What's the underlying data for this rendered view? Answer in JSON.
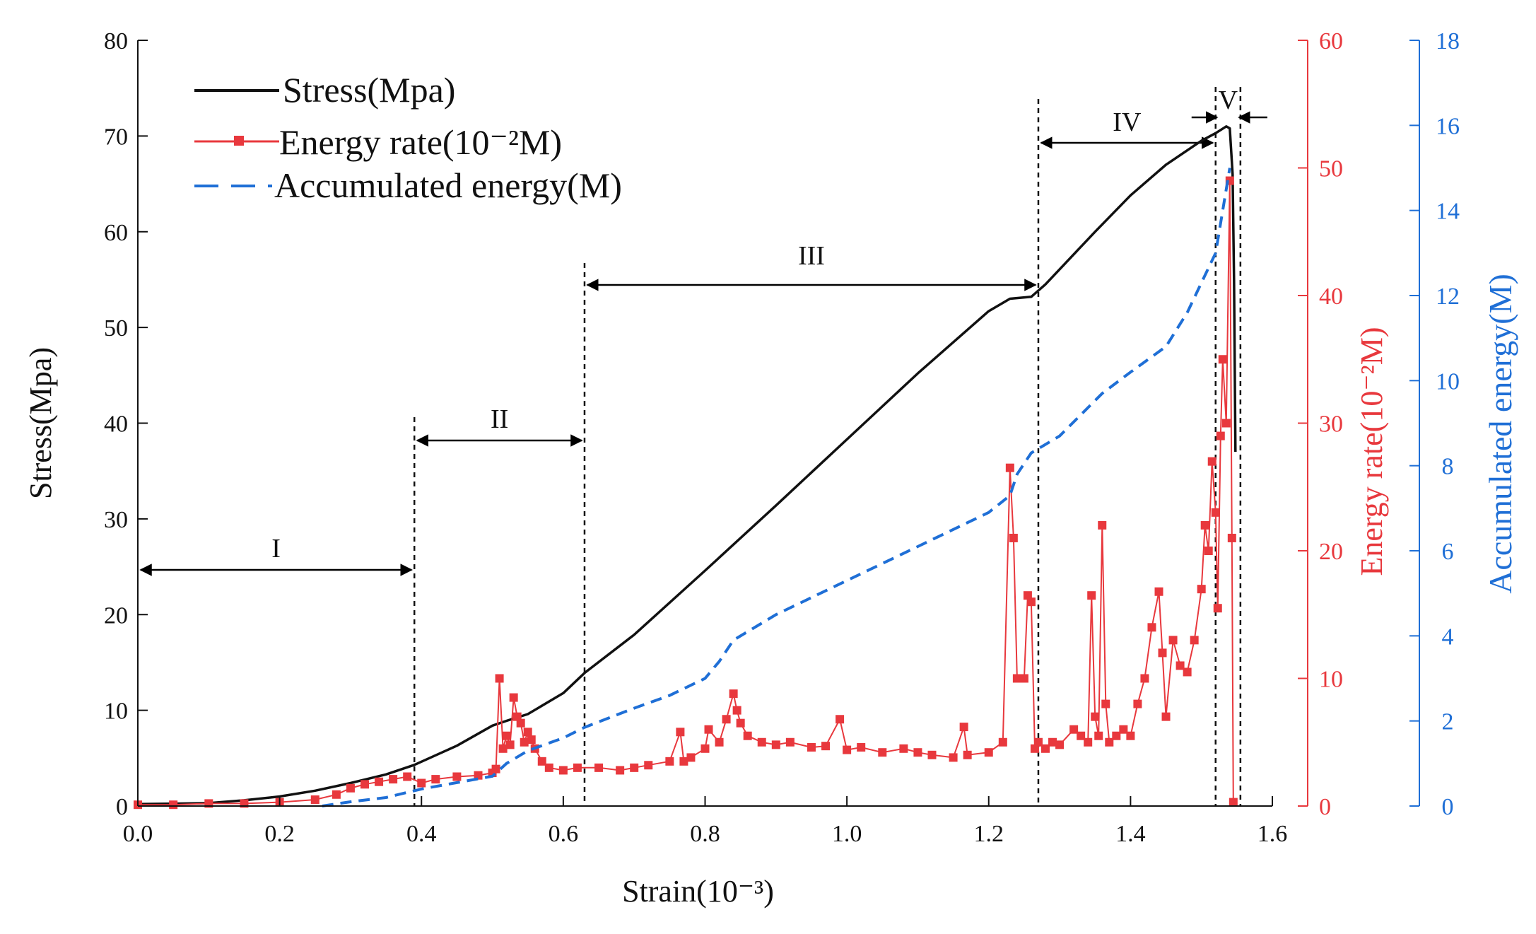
{
  "chart_data": {
    "type": "line",
    "xlabel": "Strain(10⁻³)",
    "xlim": [
      0.0,
      1.6
    ],
    "x_ticks": [
      "0.0",
      "0.2",
      "0.4",
      "0.6",
      "0.8",
      "1.0",
      "1.2",
      "1.4",
      "1.6"
    ],
    "axes": {
      "stress": {
        "label": "Stress(Mpa)",
        "lim": [
          0,
          80
        ],
        "ticks": [
          "0",
          "10",
          "20",
          "30",
          "40",
          "50",
          "60",
          "70",
          "80"
        ],
        "color": "#111111"
      },
      "energy_rate": {
        "label": "Energy rate(10⁻²M)",
        "lim": [
          0,
          60
        ],
        "ticks": [
          "0",
          "10",
          "20",
          "30",
          "40",
          "50",
          "60"
        ],
        "color": "#e8383d"
      },
      "accumulated": {
        "label": "Accumulated energy(M)",
        "lim": [
          0,
          18
        ],
        "ticks": [
          "0",
          "2",
          "4",
          "6",
          "8",
          "10",
          "12",
          "14",
          "16",
          "18"
        ],
        "color": "#1f6fd6"
      }
    },
    "legend": {
      "position": "top-left",
      "entries": [
        "Stress(Mpa)",
        "Energy rate(10⁻²M)",
        "Accumulated energy(M)"
      ]
    },
    "stages": [
      {
        "label": "I",
        "from": 0.0,
        "to": 0.39
      },
      {
        "label": "II",
        "from": 0.39,
        "to": 0.63
      },
      {
        "label": "III",
        "from": 0.63,
        "to": 1.27
      },
      {
        "label": "IV",
        "from": 1.27,
        "to": 1.52
      },
      {
        "label": "V",
        "from": 1.52,
        "to": 1.555
      }
    ],
    "series": [
      {
        "name": "Stress(Mpa)",
        "axis": "stress",
        "color": "#111111",
        "style": "solid",
        "points": [
          [
            0.0,
            0.2
          ],
          [
            0.1,
            0.3
          ],
          [
            0.15,
            0.6
          ],
          [
            0.2,
            1.0
          ],
          [
            0.25,
            1.6
          ],
          [
            0.3,
            2.4
          ],
          [
            0.35,
            3.3
          ],
          [
            0.39,
            4.3
          ],
          [
            0.45,
            6.3
          ],
          [
            0.5,
            8.4
          ],
          [
            0.52,
            8.9
          ],
          [
            0.55,
            9.6
          ],
          [
            0.6,
            11.8
          ],
          [
            0.63,
            13.9
          ],
          [
            0.7,
            17.9
          ],
          [
            0.8,
            24.6
          ],
          [
            0.9,
            31.4
          ],
          [
            1.0,
            38.3
          ],
          [
            1.1,
            45.2
          ],
          [
            1.2,
            51.7
          ],
          [
            1.23,
            53.0
          ],
          [
            1.26,
            53.2
          ],
          [
            1.28,
            54.5
          ],
          [
            1.35,
            60.0
          ],
          [
            1.4,
            63.8
          ],
          [
            1.45,
            67.0
          ],
          [
            1.5,
            69.5
          ],
          [
            1.52,
            70.3
          ],
          [
            1.535,
            71.0
          ],
          [
            1.54,
            70.8
          ],
          [
            1.544,
            66.0
          ],
          [
            1.546,
            55.0
          ],
          [
            1.548,
            37.0
          ]
        ]
      },
      {
        "name": "Energy rate(10⁻²M)",
        "axis": "energy_rate",
        "color": "#e8383d",
        "style": "line-square-markers",
        "points": [
          [
            0.0,
            0.1
          ],
          [
            0.05,
            0.1
          ],
          [
            0.1,
            0.2
          ],
          [
            0.15,
            0.2
          ],
          [
            0.2,
            0.3
          ],
          [
            0.25,
            0.5
          ],
          [
            0.28,
            0.9
          ],
          [
            0.3,
            1.4
          ],
          [
            0.32,
            1.7
          ],
          [
            0.34,
            1.9
          ],
          [
            0.36,
            2.1
          ],
          [
            0.38,
            2.3
          ],
          [
            0.4,
            1.8
          ],
          [
            0.42,
            2.1
          ],
          [
            0.45,
            2.3
          ],
          [
            0.48,
            2.4
          ],
          [
            0.5,
            2.6
          ],
          [
            0.505,
            2.9
          ],
          [
            0.51,
            10.0
          ],
          [
            0.515,
            4.5
          ],
          [
            0.52,
            5.5
          ],
          [
            0.525,
            4.8
          ],
          [
            0.53,
            8.5
          ],
          [
            0.535,
            7.0
          ],
          [
            0.54,
            6.5
          ],
          [
            0.545,
            5.0
          ],
          [
            0.55,
            5.8
          ],
          [
            0.555,
            5.2
          ],
          [
            0.56,
            4.5
          ],
          [
            0.57,
            3.5
          ],
          [
            0.58,
            3.0
          ],
          [
            0.6,
            2.8
          ],
          [
            0.62,
            3.0
          ],
          [
            0.65,
            3.0
          ],
          [
            0.68,
            2.8
          ],
          [
            0.7,
            3.0
          ],
          [
            0.72,
            3.2
          ],
          [
            0.75,
            3.5
          ],
          [
            0.765,
            5.8
          ],
          [
            0.77,
            3.5
          ],
          [
            0.78,
            3.8
          ],
          [
            0.8,
            4.5
          ],
          [
            0.805,
            6.0
          ],
          [
            0.82,
            5.0
          ],
          [
            0.83,
            6.8
          ],
          [
            0.84,
            8.8
          ],
          [
            0.845,
            7.5
          ],
          [
            0.85,
            6.5
          ],
          [
            0.86,
            5.5
          ],
          [
            0.88,
            5.0
          ],
          [
            0.9,
            4.8
          ],
          [
            0.92,
            5.0
          ],
          [
            0.95,
            4.6
          ],
          [
            0.97,
            4.7
          ],
          [
            0.99,
            6.8
          ],
          [
            1.0,
            4.4
          ],
          [
            1.02,
            4.6
          ],
          [
            1.05,
            4.2
          ],
          [
            1.08,
            4.5
          ],
          [
            1.1,
            4.2
          ],
          [
            1.12,
            4.0
          ],
          [
            1.15,
            3.8
          ],
          [
            1.165,
            6.2
          ],
          [
            1.17,
            4.0
          ],
          [
            1.2,
            4.2
          ],
          [
            1.22,
            5.0
          ],
          [
            1.23,
            26.5
          ],
          [
            1.235,
            21.0
          ],
          [
            1.24,
            10.0
          ],
          [
            1.25,
            10.0
          ],
          [
            1.255,
            16.5
          ],
          [
            1.26,
            16.0
          ],
          [
            1.265,
            4.5
          ],
          [
            1.27,
            5.0
          ],
          [
            1.28,
            4.5
          ],
          [
            1.29,
            5.0
          ],
          [
            1.3,
            4.8
          ],
          [
            1.32,
            6.0
          ],
          [
            1.33,
            5.5
          ],
          [
            1.34,
            5.0
          ],
          [
            1.345,
            16.5
          ],
          [
            1.35,
            7.0
          ],
          [
            1.355,
            5.5
          ],
          [
            1.36,
            22.0
          ],
          [
            1.365,
            8.0
          ],
          [
            1.37,
            5.0
          ],
          [
            1.38,
            5.5
          ],
          [
            1.39,
            6.0
          ],
          [
            1.4,
            5.5
          ],
          [
            1.41,
            8.0
          ],
          [
            1.42,
            10.0
          ],
          [
            1.43,
            14.0
          ],
          [
            1.44,
            16.8
          ],
          [
            1.445,
            12.0
          ],
          [
            1.45,
            7.0
          ],
          [
            1.46,
            13.0
          ],
          [
            1.47,
            11.0
          ],
          [
            1.48,
            10.5
          ],
          [
            1.49,
            13.0
          ],
          [
            1.5,
            17.0
          ],
          [
            1.505,
            22.0
          ],
          [
            1.51,
            20.0
          ],
          [
            1.515,
            27.0
          ],
          [
            1.52,
            23.0
          ],
          [
            1.523,
            15.5
          ],
          [
            1.527,
            29.0
          ],
          [
            1.53,
            35.0
          ],
          [
            1.535,
            30.0
          ],
          [
            1.54,
            49.0
          ],
          [
            1.543,
            21.0
          ],
          [
            1.545,
            0.3
          ]
        ]
      },
      {
        "name": "Accumulated energy(M)",
        "axis": "accumulated",
        "color": "#1f6fd6",
        "style": "dashed",
        "points": [
          [
            0.26,
            0.0
          ],
          [
            0.3,
            0.1
          ],
          [
            0.35,
            0.2
          ],
          [
            0.4,
            0.4
          ],
          [
            0.45,
            0.55
          ],
          [
            0.5,
            0.7
          ],
          [
            0.52,
            1.0
          ],
          [
            0.55,
            1.3
          ],
          [
            0.6,
            1.6
          ],
          [
            0.63,
            1.85
          ],
          [
            0.7,
            2.3
          ],
          [
            0.75,
            2.6
          ],
          [
            0.8,
            3.0
          ],
          [
            0.82,
            3.4
          ],
          [
            0.84,
            3.9
          ],
          [
            0.9,
            4.5
          ],
          [
            1.0,
            5.3
          ],
          [
            1.1,
            6.1
          ],
          [
            1.2,
            6.9
          ],
          [
            1.23,
            7.3
          ],
          [
            1.24,
            7.8
          ],
          [
            1.26,
            8.3
          ],
          [
            1.3,
            8.7
          ],
          [
            1.33,
            9.2
          ],
          [
            1.36,
            9.7
          ],
          [
            1.4,
            10.2
          ],
          [
            1.45,
            10.8
          ],
          [
            1.48,
            11.6
          ],
          [
            1.5,
            12.3
          ],
          [
            1.52,
            13.0
          ],
          [
            1.53,
            14.0
          ],
          [
            1.54,
            15.0
          ]
        ]
      }
    ]
  }
}
